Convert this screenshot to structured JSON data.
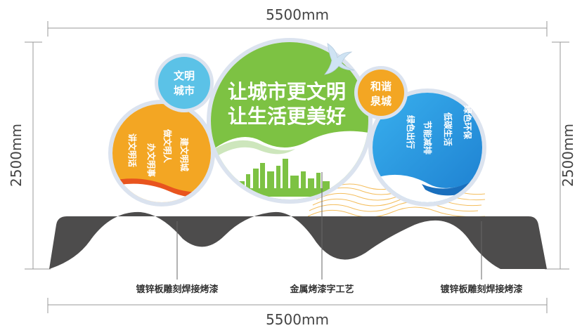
{
  "dimensions": {
    "top_width": "5500mm",
    "bottom_width": "5500mm",
    "left_height": "2500mm",
    "right_height": "2500mm"
  },
  "circles": {
    "small_top": [
      "文明",
      "城市"
    ],
    "center": [
      "让城市更文明",
      "让生活更美好"
    ],
    "small_right": [
      "和谐",
      "泉城"
    ],
    "left_columns": [
      "讲文明话",
      "做文明人",
      "办文明事",
      "建文明城"
    ],
    "right_columns": [
      "绿色出行",
      "节能减排",
      "低碳生活",
      "绿色环保"
    ]
  },
  "annotations": {
    "left": "镀锌板雕刻焊接烤漆",
    "center": "金属烤漆字工艺",
    "right": "镀锌板雕刻焊接烤漆"
  },
  "colors": {
    "base": "#4d4c4c",
    "orange": "#f3a623",
    "green": "#7dc243",
    "blue": "#2b9ae3",
    "light_blue": "#5bc2e7",
    "ring": "#dbe3ef"
  }
}
